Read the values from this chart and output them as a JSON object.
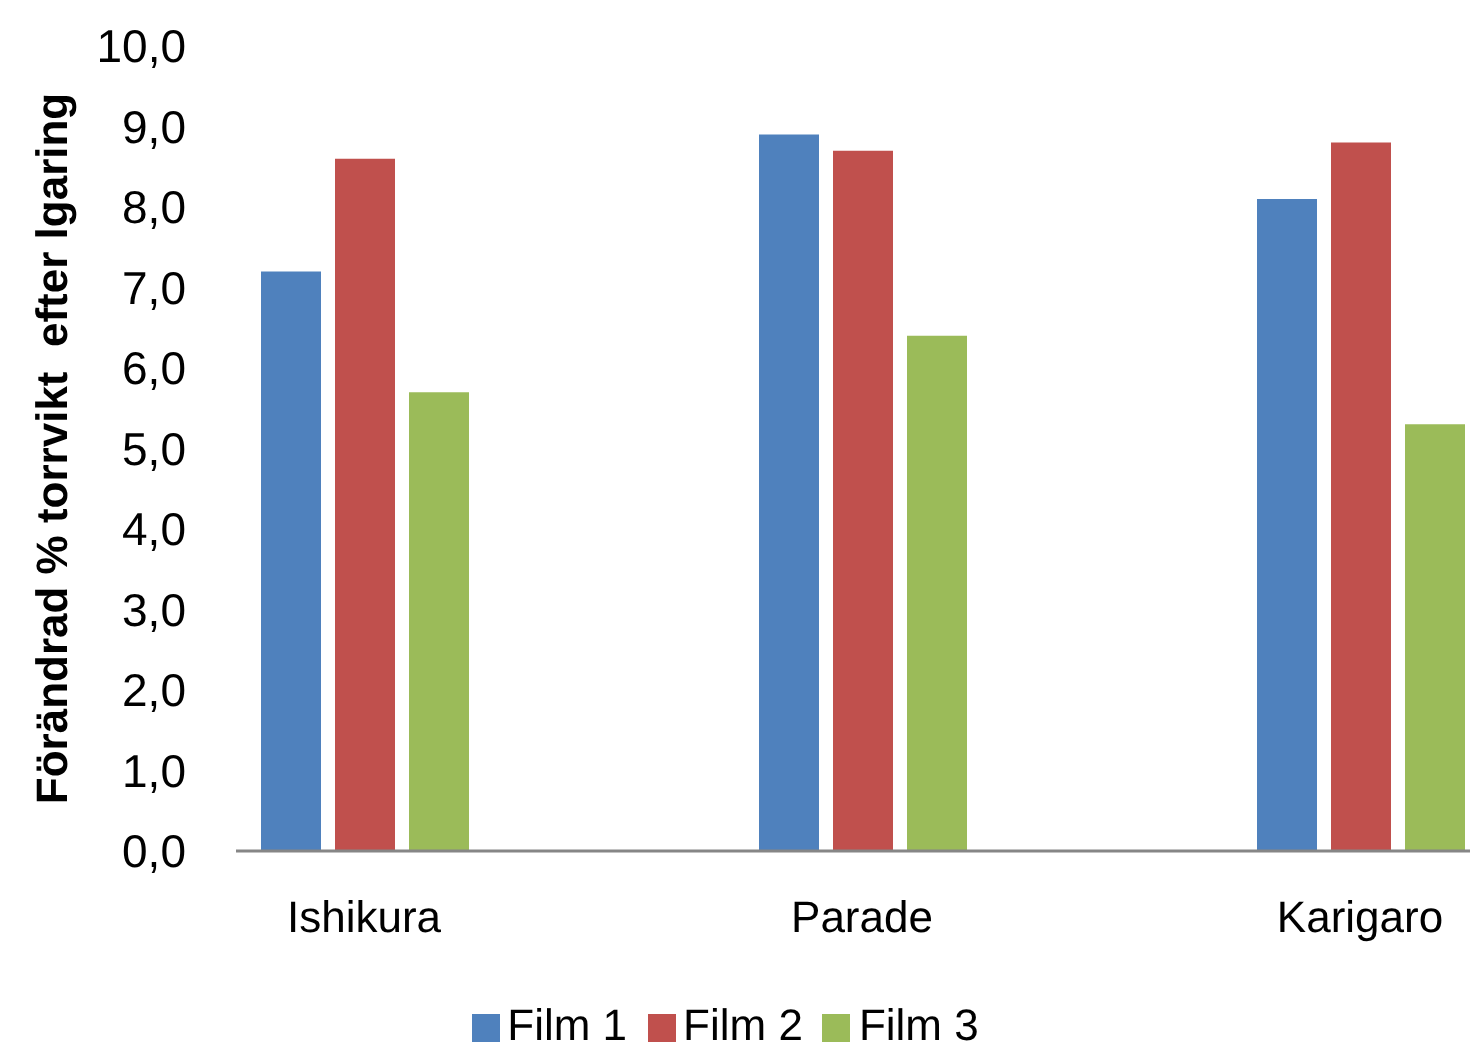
{
  "chart_data": {
    "type": "bar",
    "ylabel": "Förändrad % torrvikt  efter lgaring",
    "categories": [
      "Ishikura",
      "Parade",
      "Karigaro"
    ],
    "series": [
      {
        "name": "Film 1",
        "color": "#4f81bd",
        "values": [
          7.2,
          8.9,
          8.1
        ]
      },
      {
        "name": "Film 2",
        "color": "#c0504d",
        "values": [
          8.6,
          8.7,
          8.8
        ]
      },
      {
        "name": "Film 3",
        "color": "#9bbb59",
        "values": [
          5.7,
          6.4,
          5.3
        ]
      }
    ],
    "ylim": [
      0,
      10
    ],
    "yticks": [
      {
        "value": 0,
        "label": "0,0"
      },
      {
        "value": 1,
        "label": "1,0"
      },
      {
        "value": 2,
        "label": "2,0"
      },
      {
        "value": 3,
        "label": "3,0"
      },
      {
        "value": 4,
        "label": "4,0"
      },
      {
        "value": 5,
        "label": "5,0"
      },
      {
        "value": 6,
        "label": "6,0"
      },
      {
        "value": 7,
        "label": "7,0"
      },
      {
        "value": 8,
        "label": "8,0"
      },
      {
        "value": 9,
        "label": "9,0"
      },
      {
        "value": 10,
        "label": "10,0"
      }
    ],
    "legend": "bottom"
  }
}
